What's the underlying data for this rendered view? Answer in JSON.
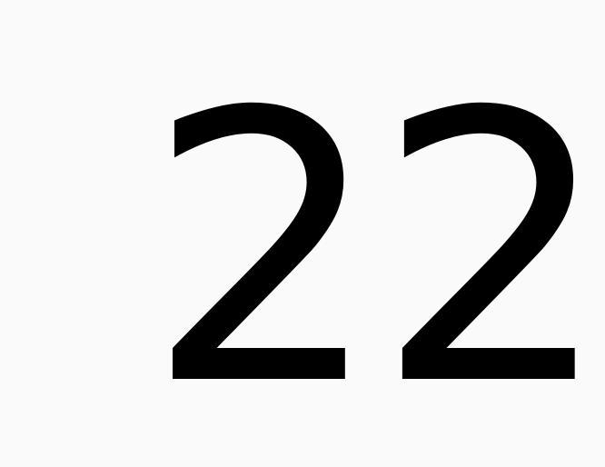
{
  "display": {
    "value": "22"
  },
  "colors": {
    "background": "#fafafa",
    "text": "#000000"
  }
}
